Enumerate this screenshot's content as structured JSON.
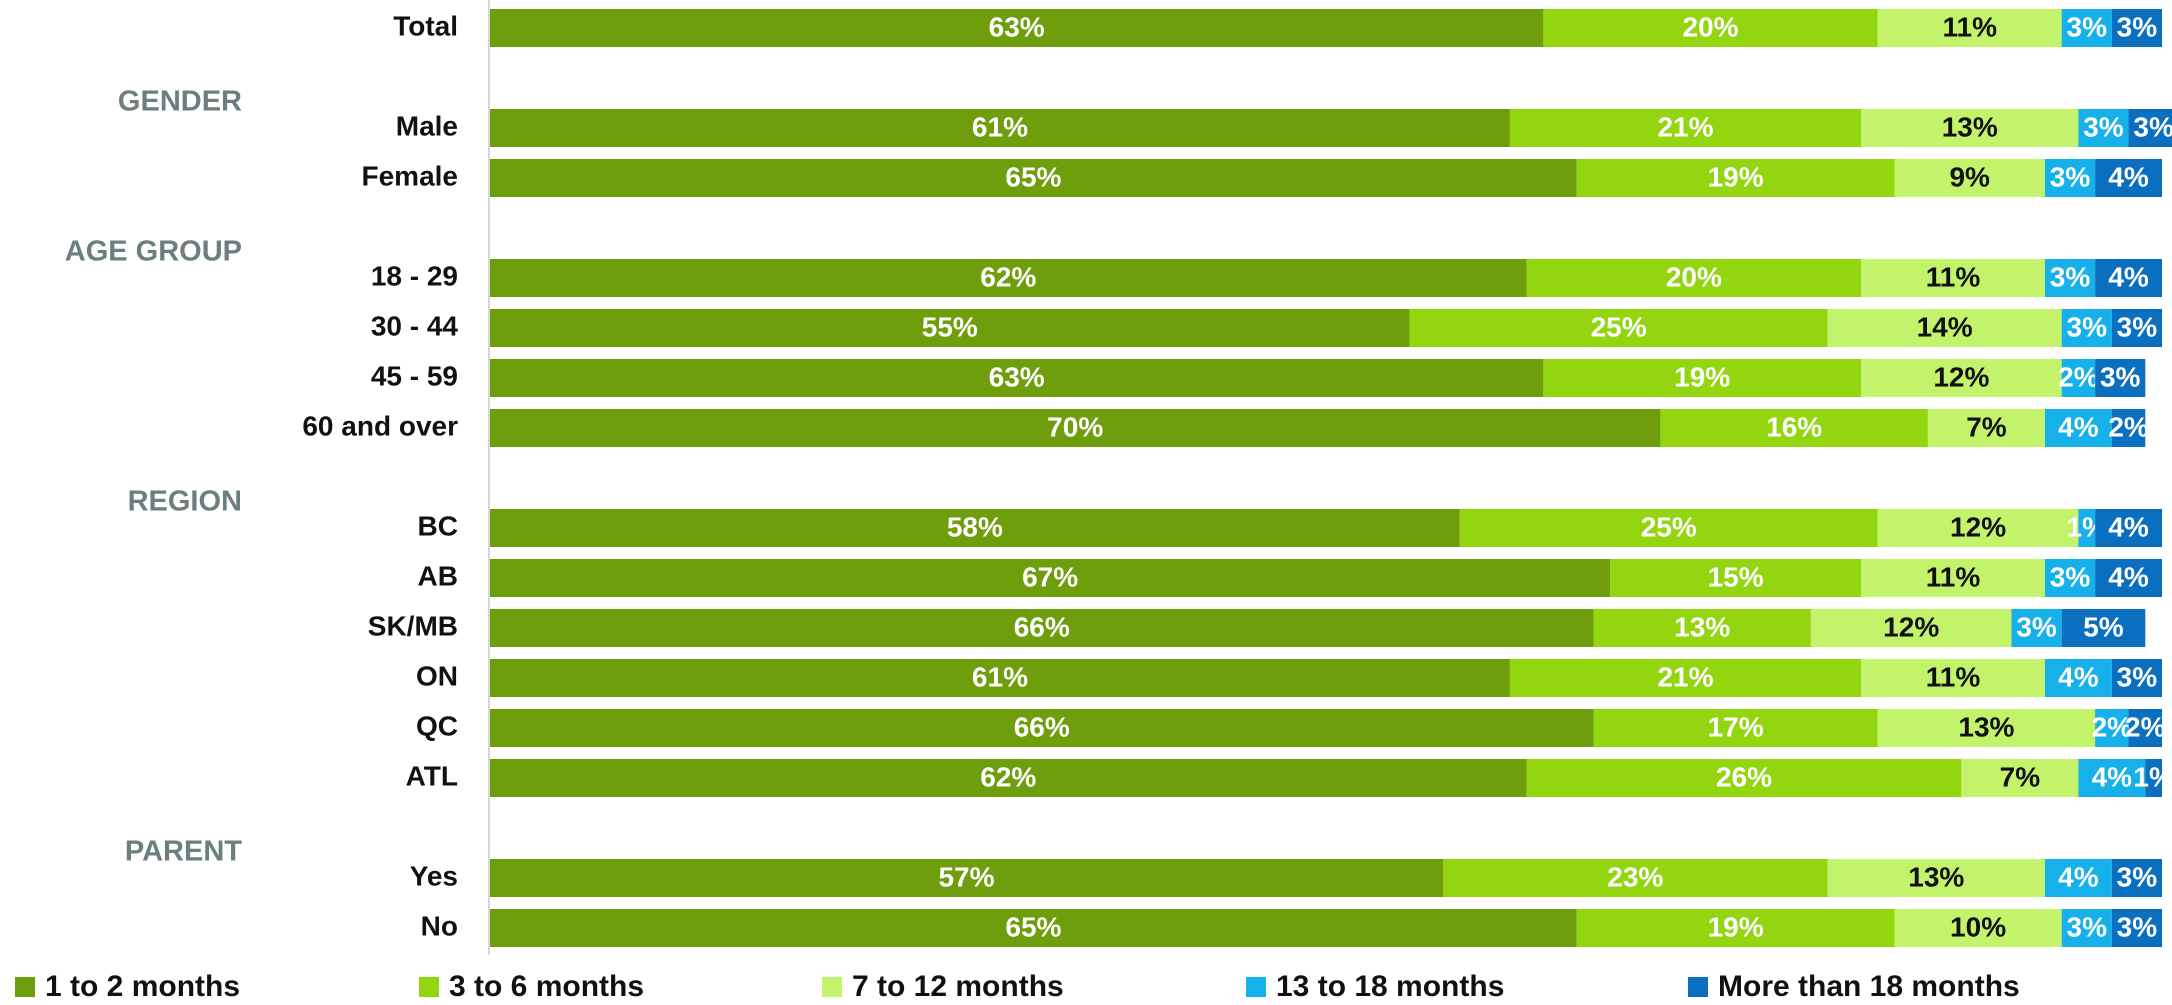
{
  "chart_data": {
    "type": "bar",
    "orientation": "horizontal",
    "stacked": true,
    "xlim": [
      0,
      100
    ],
    "title": "",
    "xlabel": "",
    "ylabel": "",
    "grid": false,
    "legend_position": "bottom",
    "series": [
      {
        "name": "1 to 2 months",
        "color": "#6e9e0c"
      },
      {
        "name": "3 to 6 months",
        "color": "#93d50f"
      },
      {
        "name": "7 to 12 months",
        "color": "#c3f26b"
      },
      {
        "name": "13 to 18 months",
        "color": "#16b0ea"
      },
      {
        "name": "More than 18 months",
        "color": "#0b6fc0"
      }
    ],
    "groups": [
      {
        "label": "",
        "rows": [
          {
            "label": "Total",
            "values": [
              63,
              20,
              11,
              3,
              3
            ]
          }
        ]
      },
      {
        "label": "GENDER",
        "rows": [
          {
            "label": "Male",
            "values": [
              61,
              21,
              13,
              3,
              3
            ]
          },
          {
            "label": "Female",
            "values": [
              65,
              19,
              9,
              3,
              4
            ]
          }
        ]
      },
      {
        "label": "AGE GROUP",
        "rows": [
          {
            "label": "18 - 29",
            "values": [
              62,
              20,
              11,
              3,
              4
            ]
          },
          {
            "label": "30 - 44",
            "values": [
              55,
              25,
              14,
              3,
              3
            ]
          },
          {
            "label": "45 - 59",
            "values": [
              63,
              19,
              12,
              2,
              3
            ]
          },
          {
            "label": "60 and over",
            "values": [
              70,
              16,
              7,
              4,
              2
            ]
          }
        ]
      },
      {
        "label": "REGION",
        "rows": [
          {
            "label": "BC",
            "values": [
              58,
              25,
              12,
              1,
              4
            ]
          },
          {
            "label": "AB",
            "values": [
              67,
              15,
              11,
              3,
              4
            ]
          },
          {
            "label": "SK/MB",
            "values": [
              66,
              13,
              12,
              3,
              5
            ]
          },
          {
            "label": "ON",
            "values": [
              61,
              21,
              11,
              4,
              3
            ]
          },
          {
            "label": "QC",
            "values": [
              66,
              17,
              13,
              2,
              2
            ]
          },
          {
            "label": "ATL",
            "values": [
              62,
              26,
              7,
              4,
              1
            ]
          }
        ]
      },
      {
        "label": "PARENT",
        "rows": [
          {
            "label": "Yes",
            "values": [
              57,
              23,
              13,
              4,
              3
            ]
          },
          {
            "label": "No",
            "values": [
              65,
              19,
              10,
              3,
              3
            ]
          }
        ]
      }
    ]
  }
}
